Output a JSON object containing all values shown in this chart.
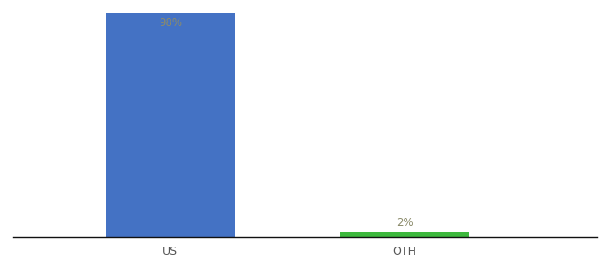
{
  "categories": [
    "US",
    "OTH"
  ],
  "values": [
    98,
    2
  ],
  "bar_colors": [
    "#4472c4",
    "#3db83d"
  ],
  "label_colors": [
    "#8b8b6b",
    "#8b8b6b"
  ],
  "labels": [
    "98%",
    "2%"
  ],
  "ylim": [
    0,
    100
  ],
  "background_color": "#ffffff",
  "bar_width": 0.55,
  "label_fontsize": 8.5,
  "tick_fontsize": 9
}
